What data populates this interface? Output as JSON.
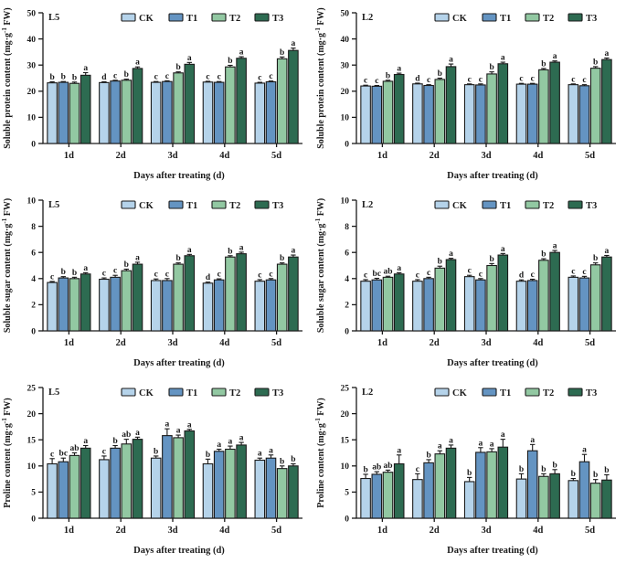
{
  "figure": {
    "legend": [
      "CK",
      "T1",
      "T2",
      "T3"
    ],
    "series_colors": {
      "CK": "#b5d3ea",
      "T1": "#6494c2",
      "T2": "#92c8a2",
      "T3": "#2d6b51"
    },
    "axis_color": "#1a1a1a",
    "background": "#ffffff",
    "xlabel": "Days after treating (d)",
    "categories": [
      "1d",
      "2d",
      "3d",
      "4d",
      "5d"
    ]
  },
  "chart_data": [
    {
      "type": "bar",
      "panel_label": "L5",
      "ylabel": "Soluble protein content (mg·g⁻¹ FW)",
      "xlabel": "Days after treating (d)",
      "ylim": [
        0,
        50
      ],
      "yticks": [
        0,
        10,
        20,
        30,
        40,
        50
      ],
      "categories": [
        "1d",
        "2d",
        "3d",
        "4d",
        "5d"
      ],
      "grid": false,
      "legend_position": "top",
      "series": [
        {
          "name": "CK",
          "values": [
            23.2,
            23.3,
            23.4,
            23.5,
            23.1
          ],
          "errors": [
            0.4,
            0.3,
            0.3,
            0.3,
            0.3
          ],
          "sig_letters": [
            "b",
            "d",
            "c",
            "c",
            "c"
          ]
        },
        {
          "name": "T1",
          "values": [
            23.4,
            23.9,
            23.7,
            23.4,
            23.6
          ],
          "errors": [
            0.3,
            0.3,
            0.3,
            0.3,
            0.3
          ],
          "sig_letters": [
            "b",
            "c",
            "c",
            "c",
            "c"
          ]
        },
        {
          "name": "T2",
          "values": [
            23.0,
            24.2,
            27.0,
            29.3,
            32.4
          ],
          "errors": [
            0.5,
            0.4,
            0.4,
            0.6,
            0.7
          ],
          "sig_letters": [
            "b",
            "b",
            "b",
            "b",
            "b"
          ]
        },
        {
          "name": "T3",
          "values": [
            26.1,
            28.7,
            30.3,
            32.6,
            35.6
          ],
          "errors": [
            1.0,
            0.6,
            0.7,
            0.6,
            0.9
          ],
          "sig_letters": [
            "a",
            "a",
            "a",
            "a",
            "a"
          ]
        }
      ]
    },
    {
      "type": "bar",
      "panel_label": "L2",
      "ylabel": "Soluble protein content (mg·g⁻¹ FW)",
      "xlabel": "Days after treating (d)",
      "ylim": [
        0,
        50
      ],
      "yticks": [
        0,
        10,
        20,
        30,
        40,
        50
      ],
      "categories": [
        "1d",
        "2d",
        "3d",
        "4d",
        "5d"
      ],
      "grid": false,
      "legend_position": "top",
      "series": [
        {
          "name": "CK",
          "values": [
            22.0,
            22.8,
            22.5,
            22.7,
            22.5
          ],
          "errors": [
            0.3,
            0.3,
            0.3,
            0.3,
            0.3
          ],
          "sig_letters": [
            "c",
            "d",
            "c",
            "c",
            "c"
          ]
        },
        {
          "name": "T1",
          "values": [
            21.9,
            22.2,
            22.4,
            22.7,
            22.1
          ],
          "errors": [
            0.3,
            0.3,
            0.4,
            0.3,
            0.4
          ],
          "sig_letters": [
            "c",
            "c",
            "c",
            "c",
            "c"
          ]
        },
        {
          "name": "T2",
          "values": [
            23.8,
            24.5,
            26.6,
            28.2,
            28.8
          ],
          "errors": [
            0.4,
            0.5,
            0.8,
            0.5,
            0.6
          ],
          "sig_letters": [
            "b",
            "b",
            "b",
            "b",
            "b"
          ]
        },
        {
          "name": "T3",
          "values": [
            26.4,
            29.4,
            30.5,
            31.1,
            32.1
          ],
          "errors": [
            0.5,
            1.0,
            0.6,
            0.5,
            0.6
          ],
          "sig_letters": [
            "a",
            "a",
            "a",
            "a",
            "a"
          ]
        }
      ]
    },
    {
      "type": "bar",
      "panel_label": "L5",
      "ylabel": "Soluble sugar content (mg·g⁻¹ FW)",
      "xlabel": "Days after treating (d)",
      "ylim": [
        0,
        10
      ],
      "yticks": [
        0,
        2,
        4,
        6,
        8,
        10
      ],
      "categories": [
        "1d",
        "2d",
        "3d",
        "4d",
        "5d"
      ],
      "grid": false,
      "legend_position": "top",
      "series": [
        {
          "name": "CK",
          "values": [
            3.7,
            3.95,
            3.85,
            3.65,
            3.8
          ],
          "errors": [
            0.08,
            0.1,
            0.12,
            0.08,
            0.12
          ],
          "sig_letters": [
            "c",
            "c",
            "c",
            "d",
            "c"
          ]
        },
        {
          "name": "T1",
          "values": [
            4.05,
            4.1,
            3.85,
            3.9,
            3.9
          ],
          "errors": [
            0.1,
            0.15,
            0.15,
            0.08,
            0.1
          ],
          "sig_letters": [
            "b",
            "c",
            "c",
            "c",
            "c"
          ]
        },
        {
          "name": "T2",
          "values": [
            4.0,
            4.6,
            5.1,
            5.65,
            5.1
          ],
          "errors": [
            0.1,
            0.12,
            0.1,
            0.1,
            0.1
          ],
          "sig_letters": [
            "b",
            "b",
            "b",
            "b",
            "b"
          ]
        },
        {
          "name": "T3",
          "values": [
            4.35,
            5.1,
            5.75,
            5.9,
            5.65
          ],
          "errors": [
            0.1,
            0.15,
            0.1,
            0.12,
            0.15
          ],
          "sig_letters": [
            "a",
            "a",
            "a",
            "a",
            "a"
          ]
        }
      ]
    },
    {
      "type": "bar",
      "panel_label": "L2",
      "ylabel": "Soluble sugar content (mg·g⁻¹ FW)",
      "xlabel": "Days after treating (d)",
      "ylim": [
        0,
        10
      ],
      "yticks": [
        0,
        2,
        4,
        6,
        8,
        10
      ],
      "categories": [
        "1d",
        "2d",
        "3d",
        "4d",
        "5d"
      ],
      "grid": false,
      "legend_position": "top",
      "series": [
        {
          "name": "CK",
          "values": [
            3.8,
            3.8,
            4.15,
            3.8,
            4.1
          ],
          "errors": [
            0.12,
            0.12,
            0.1,
            0.1,
            0.1
          ],
          "sig_letters": [
            "c",
            "c",
            "c",
            "d",
            "c"
          ]
        },
        {
          "name": "T1",
          "values": [
            3.9,
            4.0,
            3.9,
            3.85,
            4.05
          ],
          "errors": [
            0.12,
            0.1,
            0.1,
            0.1,
            0.12
          ],
          "sig_letters": [
            "bc",
            "c",
            "c",
            "c",
            "c"
          ]
        },
        {
          "name": "T2",
          "values": [
            4.1,
            4.8,
            5.0,
            5.4,
            5.05
          ],
          "errors": [
            0.08,
            0.15,
            0.15,
            0.12,
            0.15
          ],
          "sig_letters": [
            "ab",
            "b",
            "b",
            "b",
            "b"
          ]
        },
        {
          "name": "T3",
          "values": [
            4.35,
            5.45,
            5.8,
            6.0,
            5.65
          ],
          "errors": [
            0.1,
            0.1,
            0.12,
            0.15,
            0.12
          ],
          "sig_letters": [
            "a",
            "a",
            "a",
            "a",
            "a"
          ]
        }
      ]
    },
    {
      "type": "bar",
      "panel_label": "L5",
      "ylabel": "Proline content (mg·g⁻¹ FW)",
      "xlabel": "Days after treating (d)",
      "ylim": [
        0,
        25
      ],
      "yticks": [
        0,
        5,
        10,
        15,
        20,
        25
      ],
      "categories": [
        "1d",
        "2d",
        "3d",
        "4d",
        "5d"
      ],
      "grid": false,
      "legend_position": "top",
      "series": [
        {
          "name": "CK",
          "values": [
            10.4,
            11.2,
            11.5,
            10.4,
            11.1
          ],
          "errors": [
            1.0,
            0.7,
            0.4,
            0.9,
            0.4
          ],
          "sig_letters": [
            "c",
            "c",
            "b",
            "b",
            "a"
          ]
        },
        {
          "name": "T1",
          "values": [
            10.8,
            13.4,
            15.8,
            12.8,
            11.5
          ],
          "errors": [
            0.7,
            0.5,
            1.3,
            0.4,
            0.6
          ],
          "sig_letters": [
            "bc",
            "b",
            "a",
            "a",
            "a"
          ]
        },
        {
          "name": "T2",
          "values": [
            12.0,
            14.2,
            15.4,
            13.2,
            9.5
          ],
          "errors": [
            0.5,
            0.9,
            0.5,
            0.6,
            0.5
          ],
          "sig_letters": [
            "ab",
            "ab",
            "a",
            "a",
            "b"
          ]
        },
        {
          "name": "T3",
          "values": [
            13.4,
            15.1,
            16.7,
            14.0,
            10.0
          ],
          "errors": [
            0.5,
            0.4,
            0.3,
            0.5,
            0.4
          ],
          "sig_letters": [
            "a",
            "a",
            "a",
            "a",
            "b"
          ]
        }
      ]
    },
    {
      "type": "bar",
      "panel_label": "L2",
      "ylabel": "Proline content (mg·g⁻¹ FW)",
      "xlabel": "Days after treating (d)",
      "ylim": [
        0,
        25
      ],
      "yticks": [
        0,
        5,
        10,
        15,
        20,
        25
      ],
      "categories": [
        "1d",
        "2d",
        "3d",
        "4d",
        "5d"
      ],
      "grid": false,
      "legend_position": "top",
      "series": [
        {
          "name": "CK",
          "values": [
            7.6,
            7.4,
            7.0,
            7.5,
            7.2
          ],
          "errors": [
            0.8,
            1.1,
            0.8,
            1.0,
            0.4
          ],
          "sig_letters": [
            "b",
            "c",
            "b",
            "b",
            "b"
          ]
        },
        {
          "name": "T1",
          "values": [
            8.4,
            10.6,
            12.6,
            12.9,
            10.8
          ],
          "errors": [
            0.5,
            0.6,
            0.9,
            1.2,
            1.4
          ],
          "sig_letters": [
            "ab",
            "b",
            "a",
            "a",
            "a"
          ]
        },
        {
          "name": "T2",
          "values": [
            8.8,
            12.3,
            12.7,
            8.0,
            6.7
          ],
          "errors": [
            0.4,
            0.6,
            0.6,
            0.5,
            0.7
          ],
          "sig_letters": [
            "ab",
            "a",
            "a",
            "b",
            "b"
          ]
        },
        {
          "name": "T3",
          "values": [
            10.4,
            13.4,
            13.6,
            8.5,
            7.3
          ],
          "errors": [
            1.7,
            0.6,
            1.5,
            0.8,
            1.0
          ],
          "sig_letters": [
            "a",
            "a",
            "a",
            "b",
            "b"
          ]
        }
      ]
    }
  ]
}
